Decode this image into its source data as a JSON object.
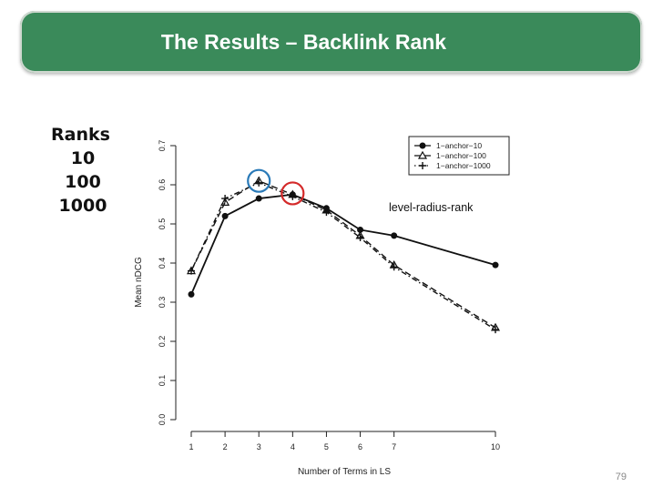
{
  "slide": {
    "title": "The Results – Backlink Rank",
    "ranks_header": "Ranks",
    "ranks": [
      "10",
      "100",
      "1000"
    ],
    "page_number": "79",
    "title_color": "#3a8a5a"
  },
  "chart_data": {
    "type": "line",
    "xlabel": "Number of Terms in LS",
    "ylabel": "Mean nDCG",
    "x": [
      1,
      2,
      3,
      4,
      5,
      6,
      7,
      10
    ],
    "xticks": [
      "1",
      "2",
      "3",
      "4",
      "5",
      "6",
      "7",
      "10"
    ],
    "ylim": [
      0.0,
      0.7
    ],
    "yticks": [
      "0.0",
      "0.1",
      "0.2",
      "0.3",
      "0.4",
      "0.5",
      "0.6",
      "0.7"
    ],
    "series": [
      {
        "name": "1−anchor−10",
        "marker": "circle",
        "dash": "solid",
        "values": [
          0.32,
          0.52,
          0.565,
          0.575,
          0.54,
          0.485,
          0.47,
          0.395
        ]
      },
      {
        "name": "1−anchor−100",
        "marker": "triangle",
        "dash": "dashed",
        "values": [
          0.38,
          0.555,
          0.61,
          0.575,
          0.535,
          0.47,
          0.395,
          0.235
        ]
      },
      {
        "name": "1−anchor−1000",
        "marker": "plus",
        "dash": "dotdash",
        "values": [
          0.38,
          0.565,
          0.605,
          0.57,
          0.53,
          0.465,
          0.39,
          0.23
        ]
      }
    ],
    "legend_position": "top-right",
    "annotation": "level-radius-rank",
    "highlights": [
      {
        "x": 3,
        "y": 0.61,
        "color": "#2a7ab8"
      },
      {
        "x": 4,
        "y": 0.578,
        "color": "#d42a2a"
      }
    ]
  }
}
